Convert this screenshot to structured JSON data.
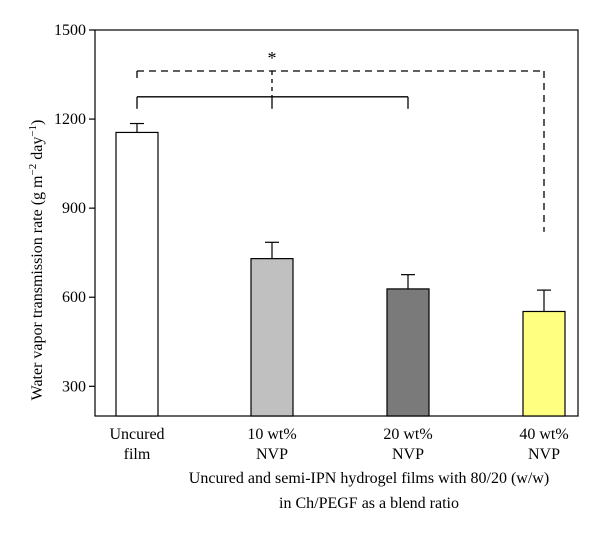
{
  "chart_data": {
    "type": "bar",
    "categories": [
      [
        "Uncured",
        "film"
      ],
      [
        "10 wt%",
        "NVP"
      ],
      [
        "20 wt%",
        "NVP"
      ],
      [
        "40 wt%",
        "NVP"
      ]
    ],
    "values": [
      1155,
      730,
      628,
      552
    ],
    "errors": [
      30,
      55,
      48,
      72
    ],
    "colors": [
      "#ffffff",
      "#c0c0c0",
      "#7a7a7a",
      "#ffff80"
    ],
    "ylabel": "Water vapor transmission rate (g m",
    "ylabel_exp1": "−2",
    "ylabel_mid": " day",
    "ylabel_exp2": "−1",
    "ylabel_end": ")",
    "xlabel": [
      "Uncured and semi-IPN hydrogel films with 80/20 (w/w)",
      "in Ch/PEGF as a blend ratio"
    ],
    "ylim": [
      200,
      1500
    ],
    "yticks": [
      300,
      600,
      900,
      1200,
      1500
    ],
    "significance": {
      "star": "*",
      "solid_bracket_y": 1275,
      "solid_bracket_from": 0,
      "solid_bracket_to": [
        1,
        2
      ],
      "dashed_bracket_y": 1362,
      "dashed_bracket_from": 0,
      "dashed_bracket_to": 3,
      "dashed_drop_end": 820
    }
  }
}
